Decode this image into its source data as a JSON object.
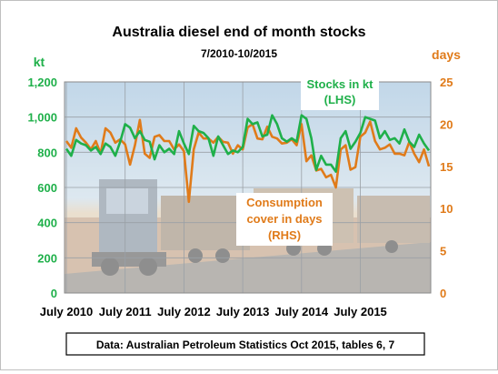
{
  "chart_data": {
    "type": "line",
    "title": "Australia diesel end of month stocks",
    "subtitle": "7/2010-10/2015",
    "source_note": "Data: Australian Petroleum Statistics Oct 2015, tables 6, 7",
    "x_range": [
      "2010-07",
      "2015-10"
    ],
    "x_tick_labels": [
      "July 2010",
      "July 2011",
      "July 2012",
      "July 2013",
      "July 2014",
      "July 2015"
    ],
    "left_axis": {
      "unit": "kt",
      "range": [
        0,
        1200
      ],
      "tick_labels": [
        "0",
        "200",
        "400",
        "600",
        "800",
        "1,000",
        "1,200"
      ]
    },
    "right_axis": {
      "unit": "days",
      "range": [
        0,
        25
      ],
      "tick_labels": [
        "0",
        "5",
        "10",
        "15",
        "20",
        "25"
      ]
    },
    "grid": true,
    "background_image": "road-train-photo",
    "series": [
      {
        "name": "Stocks in kt (LHS)",
        "name_lines": [
          "Stocks in kt",
          "(LHS)"
        ],
        "axis": "left",
        "color": "#1fb04a",
        "values": [
          820,
          780,
          870,
          850,
          840,
          810,
          830,
          790,
          850,
          830,
          780,
          860,
          960,
          940,
          880,
          920,
          870,
          860,
          760,
          840,
          800,
          820,
          790,
          920,
          850,
          790,
          950,
          920,
          910,
          880,
          780,
          890,
          840,
          790,
          810,
          800,
          830,
          990,
          960,
          970,
          890,
          900,
          1010,
          960,
          880,
          860,
          880,
          860,
          1010,
          990,
          880,
          700,
          780,
          730,
          730,
          690,
          880,
          920,
          820,
          860,
          910,
          1000,
          990,
          980,
          880,
          920,
          870,
          880,
          850,
          930,
          860,
          830,
          900,
          850,
          810
        ]
      },
      {
        "name": "Consumption cover in days (RHS)",
        "name_lines": [
          "Consumption",
          "cover in days",
          "(RHS)"
        ],
        "axis": "right",
        "color": "#e07b1a",
        "values": [
          18,
          17.2,
          19.5,
          18.4,
          17.8,
          17,
          18,
          16.5,
          19.5,
          19,
          17.8,
          18.2,
          17.6,
          15.2,
          17.5,
          20.5,
          16.5,
          16,
          18.5,
          18.7,
          18,
          18,
          17,
          17.6,
          16.8,
          10.8,
          17,
          19,
          18.3,
          18.3,
          17.8,
          18.5,
          17.9,
          17.8,
          16.5,
          17.5,
          17,
          19.6,
          20,
          18.3,
          18.2,
          19.7,
          18.5,
          18.3,
          17.7,
          17.8,
          18.2,
          17.5,
          20,
          15.6,
          16.3,
          14.5,
          14.7,
          13.7,
          14,
          12.5,
          17,
          17.5,
          14.6,
          14.9,
          18.5,
          19,
          20.3,
          18,
          17,
          17.2,
          17.6,
          16.5,
          16.5,
          16.3,
          17.9,
          16.5,
          15.5,
          17,
          15
        ]
      }
    ]
  }
}
